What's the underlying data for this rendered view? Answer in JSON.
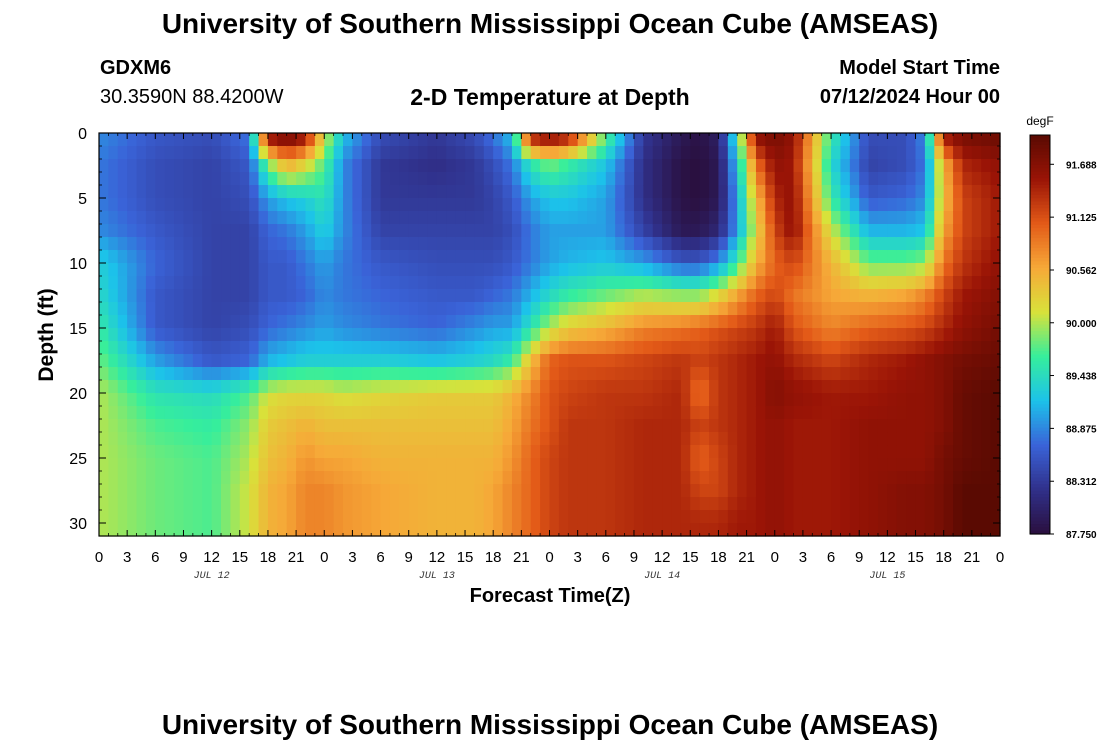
{
  "header": {
    "title": "University of Southern Mississippi Ocean Cube (AMSEAS)",
    "station_id": "GDXM6",
    "station_coords": "30.3590N  88.4200W",
    "plot_title": "2-D Temperature at Depth",
    "model_start_label": "Model Start Time",
    "model_start_value": "07/12/2024 Hour 00"
  },
  "footer": {
    "title": "University of Southern Mississippi Ocean Cube (AMSEAS)"
  },
  "colors": {
    "palette": [
      "#2a0f3e",
      "#30308a",
      "#3a63d8",
      "#1cc2ea",
      "#36ee9c",
      "#d8e23a",
      "#f6a938",
      "#e35a18",
      "#9a1406",
      "#5a0a02"
    ]
  },
  "chart_data": {
    "type": "heatmap",
    "title": "2-D Temperature at Depth",
    "xlabel": "Forecast Time(Z)",
    "ylabel": "Depth (ft)",
    "colorbar_label": "degF",
    "value_range": [
      87.75,
      92.0
    ],
    "colorbar_ticks": [
      "91.688",
      "91.125",
      "90.562",
      "90.000",
      "89.438",
      "88.875",
      "88.312",
      "87.750"
    ],
    "x_range_hours": [
      0,
      96
    ],
    "x_tick_labels": [
      "0",
      "3",
      "6",
      "9",
      "12",
      "15",
      "18",
      "21",
      "0",
      "3",
      "6",
      "9",
      "12",
      "15",
      "18",
      "21",
      "0",
      "3",
      "6",
      "9",
      "12",
      "15",
      "18",
      "21",
      "0",
      "3",
      "6",
      "9",
      "12",
      "15",
      "18",
      "21",
      "0"
    ],
    "date_labels": [
      "JUL 12",
      "JUL 13",
      "JUL 14",
      "JUL 15"
    ],
    "y_range": [
      0,
      31
    ],
    "y_tick_labels": [
      "0",
      "5",
      "10",
      "15",
      "20",
      "25",
      "30"
    ],
    "depths_ft": [
      0,
      2.5,
      5,
      7.5,
      10,
      12.5,
      15,
      17.5,
      20,
      22.5,
      25,
      27.5,
      30,
      31
    ],
    "times_h": [
      0,
      6,
      12,
      16,
      18,
      20,
      22,
      24,
      26,
      30,
      36,
      40,
      42,
      44,
      46,
      48,
      50,
      54,
      58,
      62,
      64,
      66,
      68,
      70,
      72,
      74,
      78,
      82,
      86,
      88,
      90,
      92,
      96
    ],
    "values": [
      [
        88.9,
        88.8,
        88.8,
        88.9,
        89.3,
        89.4,
        89.6,
        89.8,
        90.0,
        90.0,
        90.0,
        90.0,
        90.0,
        90.0
      ],
      [
        88.6,
        88.5,
        88.5,
        88.6,
        88.7,
        88.6,
        88.6,
        89.0,
        89.5,
        89.7,
        89.8,
        89.8,
        89.8,
        89.8
      ],
      [
        88.5,
        88.4,
        88.4,
        88.4,
        88.4,
        88.4,
        88.4,
        88.6,
        89.4,
        89.6,
        89.7,
        89.7,
        89.7,
        89.7
      ],
      [
        88.8,
        88.6,
        88.5,
        88.4,
        88.4,
        88.4,
        88.5,
        88.7,
        89.7,
        89.9,
        90.0,
        90.1,
        90.1,
        90.1
      ],
      [
        91.8,
        89.8,
        89.0,
        88.7,
        88.6,
        88.6,
        88.7,
        89.1,
        90.1,
        90.3,
        90.4,
        90.5,
        90.5,
        90.5
      ],
      [
        92.0,
        90.5,
        89.2,
        88.8,
        88.6,
        88.6,
        88.8,
        89.2,
        90.2,
        90.4,
        90.5,
        90.6,
        90.6,
        90.6
      ],
      [
        91.7,
        90.2,
        89.3,
        89.0,
        88.8,
        88.7,
        88.9,
        89.3,
        90.2,
        90.5,
        90.7,
        90.8,
        90.8,
        90.8
      ],
      [
        90.2,
        89.7,
        89.5,
        89.3,
        89.0,
        88.9,
        89.0,
        89.3,
        90.2,
        90.4,
        90.6,
        90.8,
        90.8,
        90.8
      ],
      [
        89.2,
        88.9,
        88.9,
        88.9,
        88.8,
        88.8,
        88.9,
        89.3,
        90.1,
        90.4,
        90.6,
        90.7,
        90.7,
        90.7
      ],
      [
        88.5,
        88.3,
        88.3,
        88.4,
        88.6,
        88.7,
        88.8,
        89.3,
        90.2,
        90.4,
        90.5,
        90.6,
        90.6,
        90.6
      ],
      [
        88.3,
        88.2,
        88.3,
        88.4,
        88.5,
        88.6,
        88.7,
        89.2,
        90.3,
        90.4,
        90.5,
        90.5,
        90.5,
        90.5
      ],
      [
        88.5,
        88.3,
        88.3,
        88.4,
        88.5,
        88.6,
        88.9,
        89.3,
        90.3,
        90.4,
        90.5,
        90.5,
        90.5,
        90.5
      ],
      [
        88.8,
        88.5,
        88.4,
        88.4,
        88.5,
        88.7,
        89.0,
        89.4,
        90.3,
        90.4,
        90.5,
        90.6,
        90.6,
        90.6
      ],
      [
        89.2,
        88.8,
        88.6,
        88.5,
        88.6,
        88.8,
        89.0,
        89.6,
        90.5,
        90.6,
        90.7,
        90.8,
        90.8,
        90.8
      ],
      [
        91.7,
        89.5,
        89.0,
        88.8,
        88.8,
        89.1,
        89.5,
        90.4,
        90.8,
        90.9,
        91.0,
        91.0,
        91.0,
        91.0
      ],
      [
        91.9,
        89.8,
        89.2,
        89.0,
        89.0,
        89.4,
        90.0,
        91.0,
        91.1,
        91.1,
        91.2,
        91.2,
        91.2,
        91.2
      ],
      [
        91.7,
        89.6,
        89.2,
        89.0,
        89.1,
        89.6,
        90.3,
        91.1,
        91.2,
        91.3,
        91.3,
        91.3,
        91.3,
        91.3
      ],
      [
        89.8,
        89.2,
        89.0,
        89.0,
        89.2,
        89.8,
        90.5,
        91.1,
        91.3,
        91.3,
        91.3,
        91.3,
        91.3,
        91.3
      ],
      [
        88.3,
        88.2,
        88.2,
        88.4,
        89.0,
        90.0,
        90.8,
        91.2,
        91.3,
        91.4,
        91.4,
        91.4,
        91.4,
        91.4
      ],
      [
        87.9,
        87.8,
        87.8,
        87.9,
        88.6,
        89.9,
        90.9,
        91.3,
        91.4,
        91.4,
        91.4,
        91.4,
        91.4,
        91.4
      ],
      [
        87.8,
        87.75,
        87.75,
        87.9,
        88.6,
        89.9,
        91.0,
        91.2,
        90.9,
        91.2,
        91.0,
        91.2,
        91.4,
        91.4
      ],
      [
        88.0,
        87.9,
        87.9,
        88.1,
        88.9,
        90.2,
        91.1,
        91.3,
        91.3,
        91.3,
        91.2,
        91.2,
        91.4,
        91.4
      ],
      [
        89.6,
        89.2,
        89.0,
        89.0,
        89.6,
        90.6,
        91.2,
        91.4,
        91.4,
        91.4,
        91.4,
        91.4,
        91.5,
        91.5
      ],
      [
        91.7,
        90.9,
        90.4,
        90.2,
        90.5,
        91.0,
        91.3,
        91.5,
        91.5,
        91.5,
        91.5,
        91.5,
        91.5,
        91.5
      ],
      [
        91.8,
        91.6,
        91.4,
        91.2,
        91.0,
        91.2,
        91.5,
        91.6,
        91.7,
        91.6,
        91.6,
        91.6,
        91.6,
        91.6
      ],
      [
        91.6,
        91.5,
        91.6,
        91.6,
        91.2,
        90.9,
        91.1,
        91.4,
        91.6,
        91.5,
        91.5,
        91.5,
        91.5,
        91.5
      ],
      [
        89.6,
        89.4,
        89.6,
        90.1,
        90.5,
        90.6,
        90.8,
        91.2,
        91.5,
        91.5,
        91.5,
        91.5,
        91.5,
        91.5
      ],
      [
        88.5,
        88.4,
        88.6,
        89.1,
        89.8,
        90.5,
        91.0,
        91.4,
        91.5,
        91.6,
        91.6,
        91.6,
        91.6,
        91.6
      ],
      [
        88.5,
        88.5,
        88.7,
        89.1,
        89.8,
        90.6,
        91.1,
        91.5,
        91.6,
        91.6,
        91.6,
        91.7,
        91.7,
        91.7
      ],
      [
        88.9,
        88.8,
        88.9,
        89.2,
        89.9,
        90.8,
        91.2,
        91.6,
        91.6,
        91.6,
        91.6,
        91.7,
        91.7,
        91.7
      ],
      [
        91.6,
        90.5,
        90.4,
        90.6,
        90.9,
        91.2,
        91.4,
        91.7,
        91.7,
        91.7,
        91.8,
        91.8,
        91.8,
        91.8
      ],
      [
        91.8,
        91.4,
        91.2,
        91.2,
        91.3,
        91.5,
        91.6,
        91.8,
        91.9,
        91.9,
        91.9,
        92.0,
        92.0,
        92.0
      ],
      [
        91.9,
        91.6,
        91.5,
        91.5,
        91.6,
        91.7,
        91.8,
        91.9,
        92.0,
        92.0,
        92.0,
        92.0,
        92.0,
        92.0
      ]
    ]
  }
}
